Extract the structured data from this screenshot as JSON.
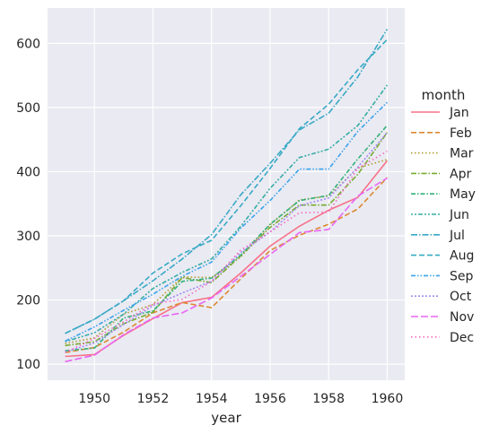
{
  "chart_data": {
    "type": "line",
    "title": "",
    "xlabel": "year",
    "ylabel": "",
    "xlim": [
      1948.4,
      1960.6
    ],
    "ylim": [
      75,
      655
    ],
    "xticks": [
      1950,
      1952,
      1954,
      1956,
      1958,
      1960
    ],
    "yticks": [
      100,
      200,
      300,
      400,
      500,
      600
    ],
    "grid": true,
    "legend_title": "month",
    "legend_position": "right",
    "x": [
      1949,
      1950,
      1951,
      1952,
      1953,
      1954,
      1955,
      1956,
      1957,
      1958,
      1959,
      1960
    ],
    "series": [
      {
        "name": "Jan",
        "color": "#f77189",
        "dash": "solid",
        "values": [
          112,
          115,
          145,
          171,
          196,
          204,
          242,
          284,
          315,
          340,
          360,
          417
        ]
      },
      {
        "name": "Feb",
        "color": "#dc8932",
        "dash": "dashed",
        "values": [
          118,
          126,
          150,
          180,
          196,
          188,
          233,
          277,
          301,
          318,
          342,
          391
        ]
      },
      {
        "name": "Mar",
        "color": "#ae9d31",
        "dash": "dotted",
        "values": [
          132,
          141,
          178,
          193,
          236,
          235,
          267,
          317,
          356,
          362,
          406,
          419
        ]
      },
      {
        "name": "Apr",
        "color": "#77ab31",
        "dash": "dashdot-long",
        "values": [
          129,
          135,
          163,
          181,
          235,
          227,
          269,
          313,
          348,
          348,
          396,
          461
        ]
      },
      {
        "name": "May",
        "color": "#33b07a",
        "dash": "dashdot",
        "values": [
          121,
          125,
          172,
          183,
          229,
          234,
          270,
          318,
          355,
          363,
          420,
          472
        ]
      },
      {
        "name": "Jun",
        "color": "#36ada4",
        "dash": "dotdash",
        "values": [
          135,
          149,
          178,
          218,
          243,
          264,
          315,
          374,
          422,
          435,
          472,
          535
        ]
      },
      {
        "name": "Jul",
        "color": "#38a9c5",
        "dash": "dashdot2",
        "values": [
          148,
          170,
          199,
          230,
          264,
          302,
          364,
          413,
          465,
          491,
          548,
          622
        ]
      },
      {
        "name": "Aug",
        "color": "#38a9c5",
        "dash": "dashed",
        "values": [
          148,
          170,
          199,
          242,
          272,
          293,
          347,
          405,
          467,
          505,
          559,
          606
        ]
      },
      {
        "name": "Sep",
        "color": "#3ba3ec",
        "dash": "dashdot3",
        "values": [
          136,
          158,
          184,
          209,
          237,
          259,
          312,
          355,
          404,
          404,
          463,
          508
        ]
      },
      {
        "name": "Oct",
        "color": "#a48cf4",
        "dash": "dotted2",
        "values": [
          119,
          133,
          162,
          191,
          211,
          229,
          274,
          306,
          347,
          359,
          407,
          461
        ]
      },
      {
        "name": "Nov",
        "color": "#e866f4",
        "dash": "dashed2",
        "values": [
          104,
          114,
          146,
          172,
          180,
          203,
          237,
          271,
          305,
          310,
          362,
          390
        ]
      },
      {
        "name": "Dec",
        "color": "#f668c2",
        "dash": "dotted3",
        "values": [
          118,
          140,
          166,
          194,
          201,
          229,
          278,
          306,
          336,
          337,
          405,
          432
        ]
      }
    ]
  }
}
